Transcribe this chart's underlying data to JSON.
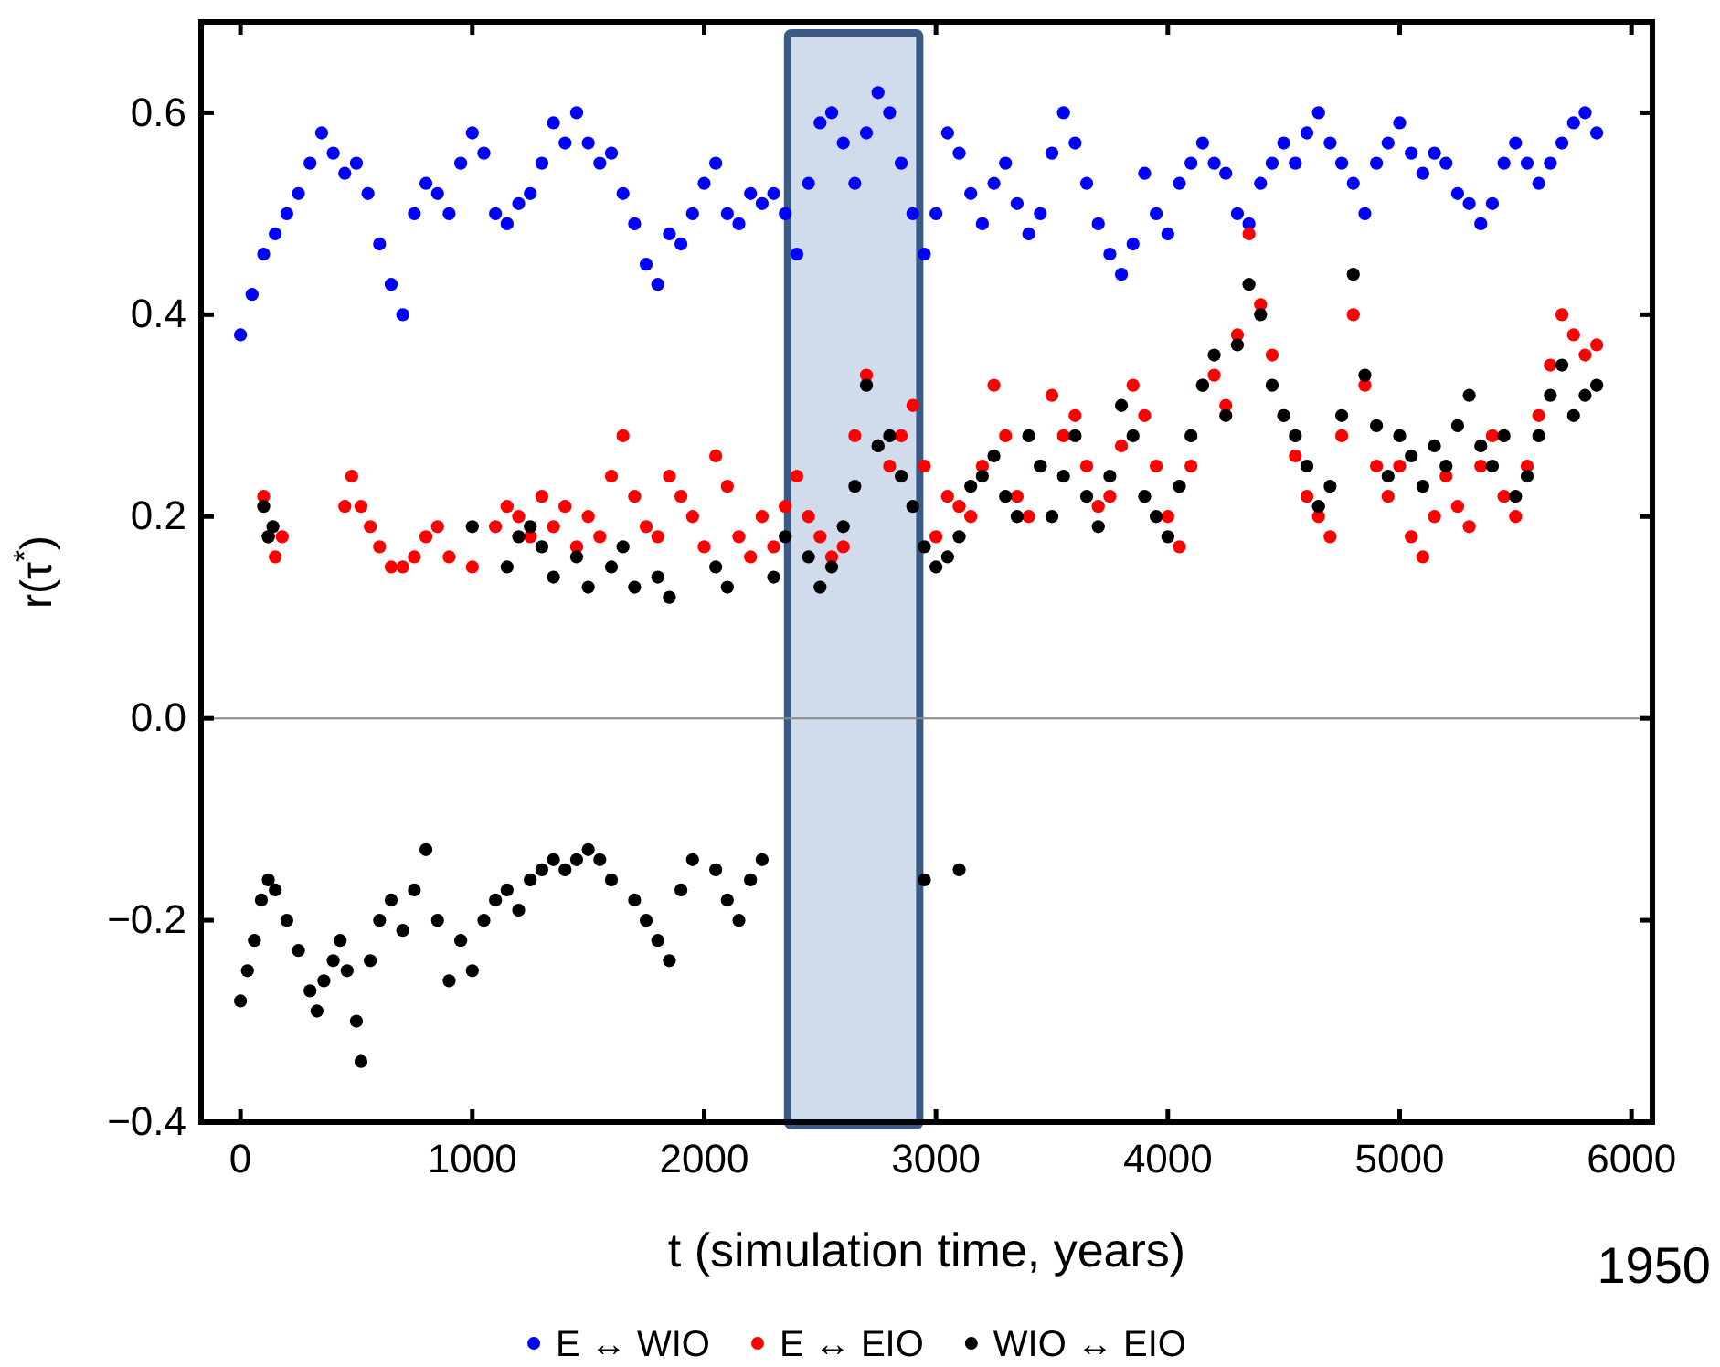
{
  "chart_data": {
    "type": "scatter",
    "xlabel": "t (simulation time, years)",
    "ylabel": "r(τ$^{*}$)",
    "xlim": [
      -170,
      6090
    ],
    "ylim": [
      -0.4,
      0.69
    ],
    "xticks": [
      0,
      1000,
      2000,
      3000,
      4000,
      5000,
      6000
    ],
    "yticks": [
      {
        "value": -0.4,
        "label": "−0.4"
      },
      {
        "value": -0.2,
        "label": "−0.2"
      },
      {
        "value": 0,
        "label": "0.0"
      },
      {
        "value": 0.2,
        "label": "0.2"
      },
      {
        "value": 0.4,
        "label": "0.4"
      },
      {
        "value": 0.6,
        "label": "0.6"
      }
    ],
    "grid": false,
    "legend": "bottom",
    "marker": "circle",
    "ref_lines": [
      {
        "axis": "y",
        "value": 0,
        "color": "#888888"
      }
    ],
    "bands": [
      {
        "axis": "x",
        "from": 2360,
        "to": 2930,
        "color": "#d0dcec"
      }
    ],
    "annotations": [
      "1950"
    ],
    "series": [
      {
        "name": "E ↔ WIO",
        "color": "#0000ff",
        "x": [
          0,
          50,
          100,
          150,
          200,
          250,
          300,
          350,
          400,
          450,
          500,
          550,
          600,
          650,
          700,
          750,
          800,
          850,
          900,
          950,
          1000,
          1050,
          1100,
          1150,
          1200,
          1250,
          1300,
          1350,
          1400,
          1450,
          1500,
          1550,
          1600,
          1650,
          1700,
          1750,
          1800,
          1850,
          1900,
          1950,
          2000,
          2050,
          2100,
          2150,
          2200,
          2250,
          2300,
          2350,
          2400,
          2450,
          2500,
          2550,
          2600,
          2650,
          2700,
          2750,
          2800,
          2850,
          2900,
          2950,
          3000,
          3050,
          3100,
          3150,
          3200,
          3250,
          3300,
          3350,
          3400,
          3450,
          3500,
          3550,
          3600,
          3650,
          3700,
          3750,
          3800,
          3850,
          3900,
          3950,
          4000,
          4050,
          4100,
          4150,
          4200,
          4250,
          4300,
          4350,
          4400,
          4450,
          4500,
          4550,
          4600,
          4650,
          4700,
          4750,
          4800,
          4850,
          4900,
          4950,
          5000,
          5050,
          5100,
          5150,
          5200,
          5250,
          5300,
          5350,
          5400,
          5450,
          5500,
          5550,
          5600,
          5650,
          5700,
          5750,
          5800,
          5850
        ],
        "values": [
          0.38,
          0.42,
          0.46,
          0.48,
          0.5,
          0.52,
          0.55,
          0.58,
          0.56,
          0.54,
          0.55,
          0.52,
          0.47,
          0.43,
          0.4,
          0.5,
          0.53,
          0.52,
          0.5,
          0.55,
          0.58,
          0.56,
          0.5,
          0.49,
          0.51,
          0.52,
          0.55,
          0.59,
          0.57,
          0.6,
          0.57,
          0.55,
          0.56,
          0.52,
          0.49,
          0.45,
          0.43,
          0.48,
          0.47,
          0.5,
          0.53,
          0.55,
          0.5,
          0.49,
          0.52,
          0.51,
          0.52,
          0.5,
          0.46,
          0.53,
          0.59,
          0.6,
          0.57,
          0.53,
          0.58,
          0.62,
          0.6,
          0.55,
          0.5,
          0.46,
          0.5,
          0.58,
          0.56,
          0.52,
          0.49,
          0.53,
          0.55,
          0.51,
          0.48,
          0.5,
          0.56,
          0.6,
          0.57,
          0.53,
          0.49,
          0.46,
          0.44,
          0.47,
          0.54,
          0.5,
          0.48,
          0.53,
          0.55,
          0.57,
          0.55,
          0.54,
          0.5,
          0.49,
          0.53,
          0.55,
          0.57,
          0.55,
          0.58,
          0.6,
          0.57,
          0.55,
          0.53,
          0.5,
          0.55,
          0.57,
          0.59,
          0.56,
          0.54,
          0.56,
          0.55,
          0.52,
          0.51,
          0.49,
          0.51,
          0.55,
          0.57,
          0.55,
          0.53,
          0.55,
          0.57,
          0.59,
          0.6,
          0.58
        ]
      },
      {
        "name": "E ↔ EIO",
        "color": "#ff0000",
        "x": [
          100,
          120,
          150,
          180,
          450,
          480,
          520,
          560,
          600,
          650,
          700,
          750,
          800,
          850,
          900,
          1000,
          1100,
          1150,
          1200,
          1250,
          1300,
          1350,
          1400,
          1450,
          1500,
          1550,
          1600,
          1650,
          1700,
          1750,
          1800,
          1850,
          1900,
          1950,
          2000,
          2050,
          2100,
          2150,
          2200,
          2250,
          2300,
          2350,
          2400,
          2450,
          2500,
          2550,
          2600,
          2650,
          2700,
          2750,
          2800,
          2850,
          2900,
          2950,
          3000,
          3050,
          3100,
          3150,
          3200,
          3250,
          3300,
          3350,
          3400,
          3450,
          3500,
          3550,
          3600,
          3650,
          3700,
          3750,
          3800,
          3850,
          3900,
          3950,
          4000,
          4050,
          4100,
          4150,
          4200,
          4250,
          4300,
          4350,
          4400,
          4450,
          4500,
          4550,
          4600,
          4650,
          4700,
          4750,
          4800,
          4850,
          4900,
          4950,
          5000,
          5050,
          5100,
          5150,
          5200,
          5250,
          5300,
          5350,
          5400,
          5450,
          5500,
          5550,
          5600,
          5650,
          5700,
          5750,
          5800,
          5850
        ],
        "values": [
          0.22,
          0.18,
          0.16,
          0.18,
          0.21,
          0.24,
          0.21,
          0.19,
          0.17,
          0.15,
          0.15,
          0.16,
          0.18,
          0.19,
          0.16,
          0.15,
          0.19,
          0.21,
          0.2,
          0.18,
          0.22,
          0.19,
          0.21,
          0.17,
          0.2,
          0.18,
          0.24,
          0.28,
          0.22,
          0.19,
          0.18,
          0.24,
          0.22,
          0.2,
          0.17,
          0.26,
          0.23,
          0.18,
          0.16,
          0.2,
          0.17,
          0.21,
          0.24,
          0.2,
          0.18,
          0.16,
          0.17,
          0.28,
          0.34,
          0.27,
          0.25,
          0.28,
          0.31,
          0.25,
          0.18,
          0.22,
          0.21,
          0.2,
          0.25,
          0.33,
          0.28,
          0.22,
          0.2,
          0.25,
          0.32,
          0.28,
          0.3,
          0.25,
          0.21,
          0.22,
          0.27,
          0.33,
          0.3,
          0.25,
          0.2,
          0.17,
          0.25,
          0.33,
          0.34,
          0.31,
          0.38,
          0.48,
          0.41,
          0.36,
          0.3,
          0.26,
          0.22,
          0.2,
          0.18,
          0.28,
          0.4,
          0.33,
          0.25,
          0.22,
          0.25,
          0.18,
          0.16,
          0.2,
          0.24,
          0.21,
          0.19,
          0.25,
          0.28,
          0.22,
          0.2,
          0.25,
          0.3,
          0.35,
          0.4,
          0.38,
          0.36,
          0.37
        ]
      },
      {
        "name": "WIO ↔ EIO",
        "color": "#000000",
        "x": [
          100,
          120,
          140,
          1000,
          1150,
          1200,
          1250,
          1300,
          1350,
          1450,
          1500,
          1600,
          1650,
          1700,
          1800,
          1850,
          2050,
          2100,
          2300,
          2350,
          2450,
          2500,
          2550,
          2600,
          2650,
          2700,
          2750,
          2800,
          2850,
          2900,
          2950,
          3000,
          3050,
          3100,
          3150,
          3200,
          3250,
          3300,
          3350,
          3400,
          3450,
          3500,
          3550,
          3600,
          3650,
          3700,
          3750,
          3800,
          3850,
          3900,
          3950,
          4000,
          4050,
          4100,
          4150,
          4200,
          4250,
          4300,
          4350,
          4400,
          4450,
          4500,
          4550,
          4600,
          4650,
          4700,
          4750,
          4800,
          4850,
          4900,
          4950,
          5000,
          5050,
          5100,
          5150,
          5200,
          5250,
          5300,
          5350,
          5400,
          5450,
          5500,
          5550,
          5600,
          5650,
          5700,
          5750,
          5800,
          5850,
          0,
          30,
          60,
          90,
          120,
          150,
          200,
          250,
          300,
          330,
          360,
          400,
          430,
          460,
          500,
          520,
          560,
          600,
          650,
          700,
          750,
          800,
          850,
          900,
          950,
          1000,
          1050,
          1100,
          1150,
          1200,
          1250,
          1300,
          1350,
          1400,
          1450,
          1500,
          1550,
          1600,
          1700,
          1750,
          1800,
          1850,
          1900,
          1950,
          2050,
          2100,
          2150,
          2200,
          2250,
          2950,
          3100
        ],
        "values": [
          0.21,
          0.18,
          0.19,
          0.19,
          0.15,
          0.18,
          0.19,
          0.17,
          0.14,
          0.16,
          0.13,
          0.15,
          0.17,
          0.13,
          0.14,
          0.12,
          0.15,
          0.13,
          0.14,
          0.18,
          0.16,
          0.13,
          0.15,
          0.19,
          0.23,
          0.33,
          0.27,
          0.28,
          0.24,
          0.21,
          0.17,
          0.15,
          0.16,
          0.18,
          0.23,
          0.24,
          0.26,
          0.22,
          0.2,
          0.28,
          0.25,
          0.2,
          0.24,
          0.28,
          0.22,
          0.19,
          0.24,
          0.31,
          0.28,
          0.22,
          0.2,
          0.18,
          0.23,
          0.28,
          0.33,
          0.36,
          0.3,
          0.37,
          0.43,
          0.4,
          0.33,
          0.3,
          0.28,
          0.25,
          0.21,
          0.23,
          0.3,
          0.44,
          0.34,
          0.29,
          0.24,
          0.28,
          0.26,
          0.23,
          0.27,
          0.25,
          0.29,
          0.32,
          0.27,
          0.25,
          0.28,
          0.22,
          0.24,
          0.28,
          0.32,
          0.35,
          0.3,
          0.32,
          0.33,
          -0.28,
          -0.25,
          -0.22,
          -0.18,
          -0.16,
          -0.17,
          -0.2,
          -0.23,
          -0.27,
          -0.29,
          -0.26,
          -0.24,
          -0.22,
          -0.25,
          -0.3,
          -0.34,
          -0.24,
          -0.2,
          -0.18,
          -0.21,
          -0.17,
          -0.13,
          -0.2,
          -0.26,
          -0.22,
          -0.25,
          -0.2,
          -0.18,
          -0.17,
          -0.19,
          -0.16,
          -0.15,
          -0.14,
          -0.15,
          -0.14,
          -0.13,
          -0.14,
          -0.16,
          -0.18,
          -0.2,
          -0.22,
          -0.24,
          -0.17,
          -0.14,
          -0.15,
          -0.18,
          -0.2,
          -0.16,
          -0.14,
          -0.16,
          -0.15
        ]
      }
    ]
  }
}
